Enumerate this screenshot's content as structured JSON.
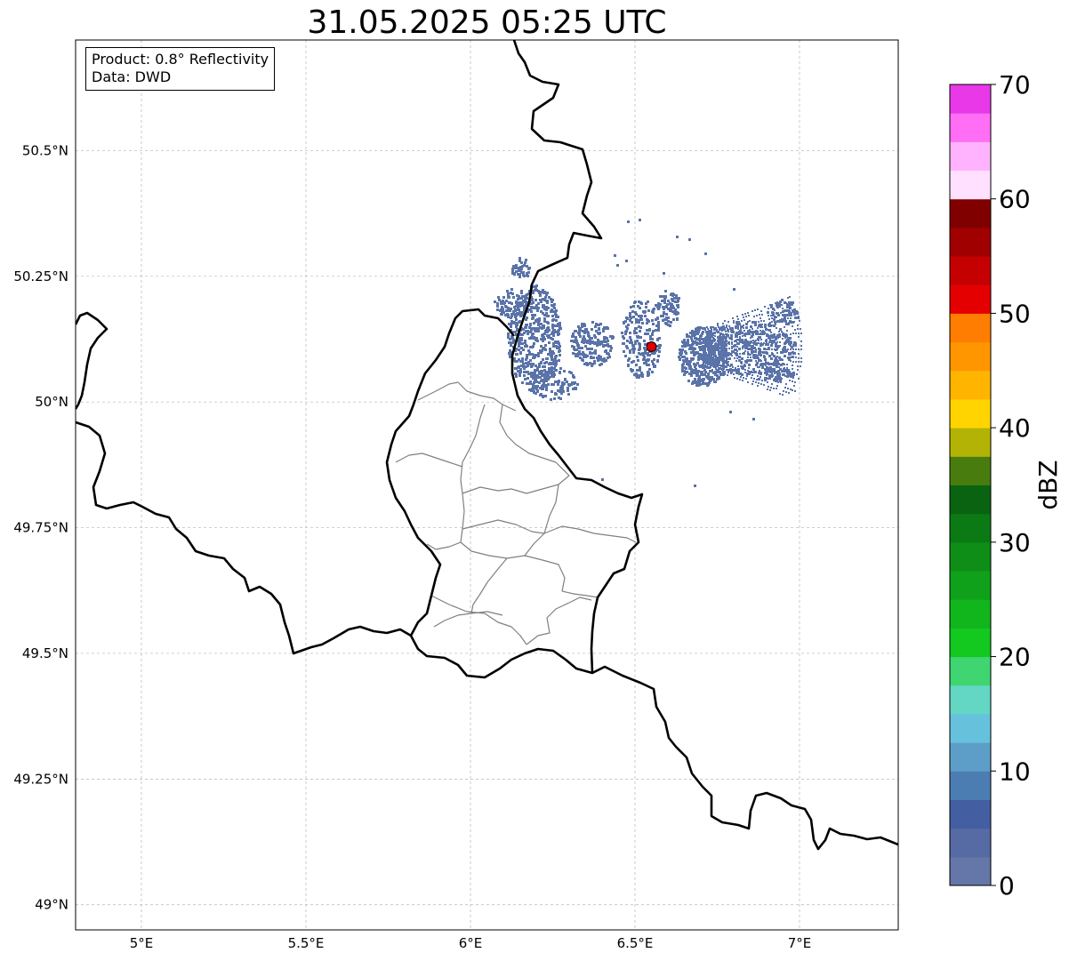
{
  "title": "31.05.2025 05:25 UTC",
  "info_box": {
    "product_line": "Product: 0.8° Reflectivity",
    "source_line": "Data: DWD"
  },
  "map": {
    "lon_range": [
      4.8,
      7.3
    ],
    "lat_range": [
      48.95,
      50.72
    ],
    "lon_ticks": [
      {
        "value": 5.0,
        "label": "5°E"
      },
      {
        "value": 5.5,
        "label": "5.5°E"
      },
      {
        "value": 6.0,
        "label": "6°E"
      },
      {
        "value": 6.5,
        "label": "6.5°E"
      },
      {
        "value": 7.0,
        "label": "7°E"
      }
    ],
    "lat_ticks": [
      {
        "value": 49.0,
        "label": "49°N"
      },
      {
        "value": 49.25,
        "label": "49.25°N"
      },
      {
        "value": 49.5,
        "label": "49.5°N"
      },
      {
        "value": 49.75,
        "label": "49.75°N"
      },
      {
        "value": 50.0,
        "label": "50°N"
      },
      {
        "value": 50.25,
        "label": "50.25°N"
      },
      {
        "value": 50.5,
        "label": "50.5°N"
      }
    ],
    "radar_site": {
      "lon": 6.55,
      "lat": 50.11,
      "color": "#e00000"
    },
    "echo_color": "#5a73a8",
    "border_color": "#000000",
    "region_color": "#808080"
  },
  "colorbar": {
    "label": "dBZ",
    "tick_values": [
      0,
      10,
      20,
      30,
      40,
      50,
      60,
      70
    ],
    "tick_labels": [
      "0",
      "10",
      "20",
      "30",
      "40",
      "50",
      "60",
      "70"
    ],
    "range": [
      0,
      70
    ],
    "colors": [
      "#6576a8",
      "#566aa3",
      "#435fa2",
      "#4c7db2",
      "#5d9ec8",
      "#66c2dc",
      "#63d6c4",
      "#3fd570",
      "#13c81e",
      "#11b51c",
      "#10a11a",
      "#0e8e17",
      "#0c7a14",
      "#0a6311",
      "#487c0e",
      "#b2b305",
      "#ffd400",
      "#ffb400",
      "#ff9600",
      "#ff7d00",
      "#e40000",
      "#c40000",
      "#a00000",
      "#800000",
      "#ffe0ff",
      "#ffb3ff",
      "#ff6ef5",
      "#e838e8"
    ]
  }
}
